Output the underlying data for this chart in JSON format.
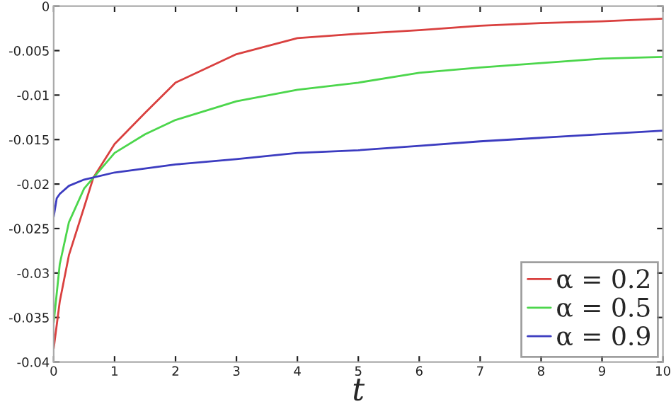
{
  "chart_data": {
    "type": "line",
    "xlabel": "t",
    "xlim": [
      0,
      10
    ],
    "ylim": [
      -0.04,
      0
    ],
    "xticks": [
      0,
      1,
      2,
      3,
      4,
      5,
      6,
      7,
      8,
      9,
      10
    ],
    "yticks": [
      0,
      -0.005,
      -0.01,
      -0.015,
      -0.02,
      -0.025,
      -0.03,
      -0.035,
      -0.04
    ],
    "grid": false,
    "legend": "bottom right",
    "marker": "none",
    "line_style": "solid",
    "series": [
      {
        "name": "α = 0.2",
        "color": "#d9403f",
        "x": [
          0,
          0.1,
          0.25,
          0.5,
          0.65,
          1,
          1.5,
          2,
          3,
          4,
          5,
          6,
          7,
          8,
          9,
          10
        ],
        "values": [
          -0.0385,
          -0.0332,
          -0.028,
          -0.0226,
          -0.0193,
          -0.0155,
          -0.012,
          -0.0086,
          -0.0054,
          -0.0036,
          -0.0031,
          -0.0027,
          -0.0022,
          -0.0019,
          -0.0017,
          -0.0014
        ]
      },
      {
        "name": "α = 0.5",
        "color": "#4cd64c",
        "x": [
          0,
          0.1,
          0.25,
          0.5,
          0.65,
          1,
          1.5,
          2,
          3,
          4,
          5,
          6,
          7,
          8,
          9,
          10
        ],
        "values": [
          -0.0356,
          -0.029,
          -0.0243,
          -0.0205,
          -0.0193,
          -0.0165,
          -0.0144,
          -0.0128,
          -0.0107,
          -0.0094,
          -0.0086,
          -0.0075,
          -0.0069,
          -0.0064,
          -0.0059,
          -0.0057
        ]
      },
      {
        "name": "α = 0.9",
        "color": "#3c3cc0",
        "x": [
          0,
          0.05,
          0.1,
          0.25,
          0.5,
          1,
          2,
          3,
          4,
          5,
          6,
          7,
          8,
          9,
          10
        ],
        "values": [
          -0.0237,
          -0.0216,
          -0.0211,
          -0.0202,
          -0.0195,
          -0.0187,
          -0.0178,
          -0.0172,
          -0.0165,
          -0.0162,
          -0.0157,
          -0.0152,
          -0.0148,
          -0.0144,
          -0.014
        ]
      }
    ]
  }
}
